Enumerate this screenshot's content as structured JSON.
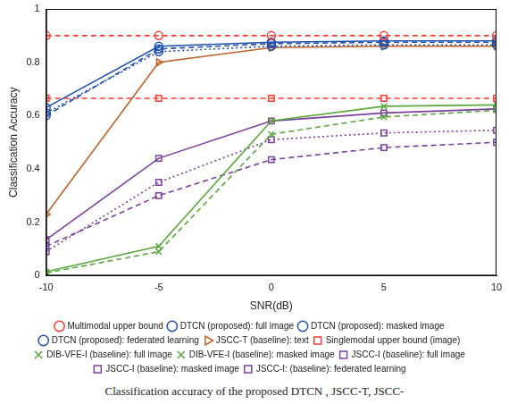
{
  "chart_data": {
    "type": "line",
    "x_label": "SNR(dB)",
    "y_label": "Classification Accuracy",
    "caption": "Classification accuracy of the proposed DTCN , JSCC-T, JSCC-",
    "x": [
      -10,
      -5,
      0,
      5,
      10
    ],
    "xlim": [
      -10,
      10
    ],
    "xticks": [
      -10,
      -5,
      0,
      5,
      10
    ],
    "ylim": [
      0,
      1
    ],
    "yticks": [
      0,
      0.2,
      0.4,
      0.6,
      0.8,
      1
    ],
    "grid": false,
    "legend": "bottom",
    "series": [
      {
        "name": "Multimodal upper bound",
        "color": "#ff3b30",
        "marker": "circle",
        "line_style": "dashed",
        "values": [
          0.9,
          0.9,
          0.9,
          0.9,
          0.9
        ]
      },
      {
        "name": "DTCN (proposed): full image",
        "color": "#2050b0",
        "marker": "circle",
        "line_style": "solid",
        "values": [
          0.63,
          0.86,
          0.875,
          0.88,
          0.88
        ]
      },
      {
        "name": "DTCN (proposed): masked image",
        "color": "#2050b0",
        "marker": "circle",
        "line_style": "dashed",
        "values": [
          0.6,
          0.85,
          0.87,
          0.875,
          0.875
        ]
      },
      {
        "name": "DTCN (proposed): federated learning",
        "color": "#2050b0",
        "marker": "circle",
        "line_style": "dotted",
        "values": [
          0.61,
          0.84,
          0.86,
          0.865,
          0.865
        ]
      },
      {
        "name": "JSCC-T (baseline): text",
        "color": "#c0622a",
        "marker": "triangle-right",
        "line_style": "solid",
        "values": [
          0.23,
          0.8,
          0.855,
          0.86,
          0.86
        ]
      },
      {
        "name": "Singlemodal upper bound (image)",
        "color": "#ff3b30",
        "marker": "square",
        "line_style": "dashed",
        "values": [
          0.665,
          0.665,
          0.665,
          0.665,
          0.665
        ]
      },
      {
        "name": "DIB-VFE-I (baseline): full image",
        "color": "#5aa83c",
        "marker": "x",
        "line_style": "solid",
        "values": [
          0.015,
          0.11,
          0.58,
          0.635,
          0.64
        ]
      },
      {
        "name": "DIB-VFE-I (baseline): masked image",
        "color": "#5aa83c",
        "marker": "x",
        "line_style": "dashed",
        "values": [
          0.01,
          0.09,
          0.53,
          0.595,
          0.62
        ]
      },
      {
        "name": "JSCC-I (baseline): full image",
        "color": "#7b3fa0",
        "marker": "square",
        "line_style": "solid",
        "values": [
          0.135,
          0.44,
          0.58,
          0.61,
          0.625
        ]
      },
      {
        "name": "JSCC-I (baseline): masked image",
        "color": "#7b3fa0",
        "marker": "square",
        "line_style": "dashed",
        "values": [
          0.11,
          0.3,
          0.435,
          0.48,
          0.5
        ]
      },
      {
        "name": "JSCC-I: (baseline): federated learning",
        "color": "#7b3fa0",
        "marker": "square",
        "line_style": "dotted",
        "values": [
          0.09,
          0.35,
          0.51,
          0.535,
          0.545
        ]
      }
    ]
  }
}
